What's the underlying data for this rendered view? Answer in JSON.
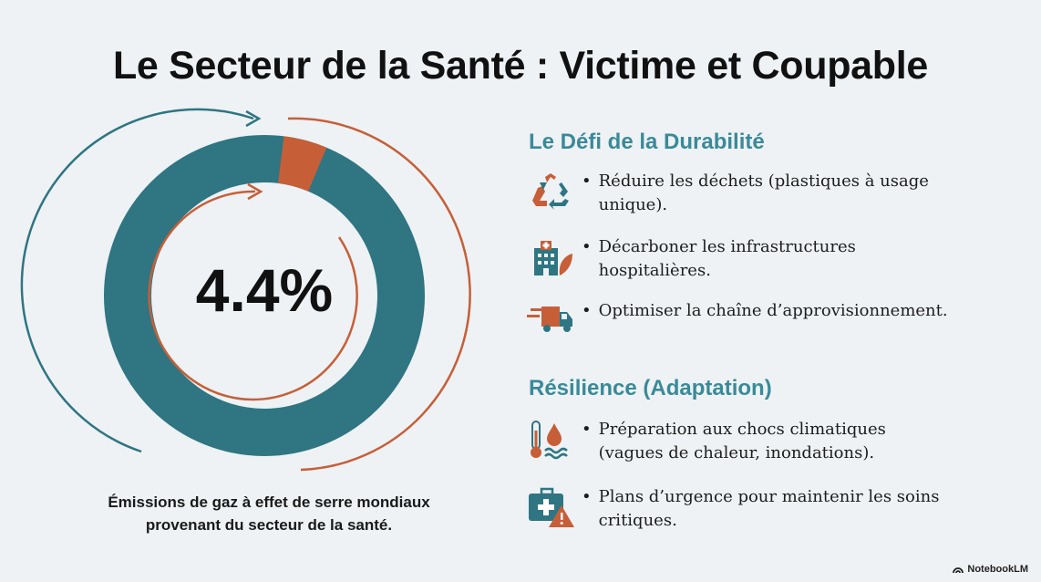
{
  "title": "Le Secteur de la Santé : Victime et Coupable",
  "stat": {
    "value": "4.4%",
    "share_percent": 4.4,
    "caption_line1": "Émissions de gaz à effet de serre mondiaux",
    "caption_line2": "provenant du secteur de la santé."
  },
  "sustainability": {
    "title": "Le Défi de la Durabilité",
    "items": [
      {
        "icon": "recycle-icon",
        "line1": "Réduire les déchets (plastiques à usage",
        "line2": "unique)."
      },
      {
        "icon": "hospital-leaf-icon",
        "line1": "Décarboner les infrastructures",
        "line2": "hospitalières."
      },
      {
        "icon": "delivery-truck-icon",
        "line1": "Optimiser la chaîne d’approvisionnement.",
        "line2": ""
      }
    ]
  },
  "resilience": {
    "title": "Résilience (Adaptation)",
    "items": [
      {
        "icon": "thermometer-flood-icon",
        "line1": "Préparation aux chocs climatiques",
        "line2": "(vagues de chaleur, inondations)."
      },
      {
        "icon": "medical-kit-warning-icon",
        "line1": "Plans d’urgence pour maintenir les soins",
        "line2": "critiques."
      }
    ]
  },
  "brand": "NotebookLM",
  "colors": {
    "teal": "#2f7582",
    "orange": "#c65f38",
    "accent_teal": "#3a8a98"
  }
}
